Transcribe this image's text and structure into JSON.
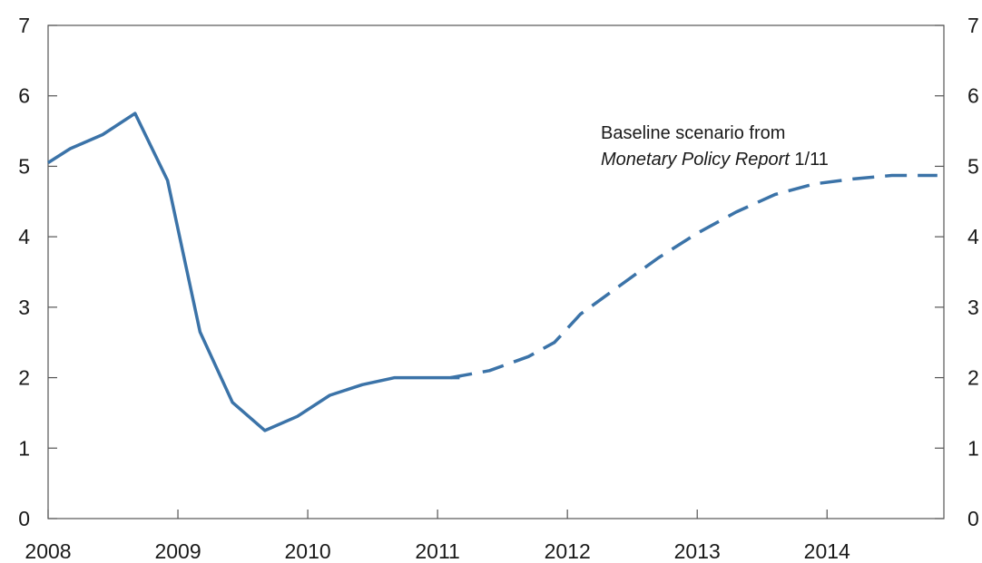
{
  "chart_data": {
    "type": "line",
    "title": "",
    "xlabel": "",
    "ylabel": "",
    "xlim": [
      2008,
      2014.9
    ],
    "ylim": [
      0,
      7
    ],
    "grid": false,
    "legend": "none",
    "x_ticks": [
      "2008",
      "2009",
      "2010",
      "2011",
      "2012",
      "2013",
      "2014"
    ],
    "y_ticks_left": [
      "0",
      "1",
      "2",
      "3",
      "4",
      "5",
      "6",
      "7"
    ],
    "y_ticks_right": [
      "0",
      "1",
      "2",
      "3",
      "4",
      "5",
      "6",
      "7"
    ],
    "series": [
      {
        "style": "solid",
        "color": "#3B73A8",
        "x": [
          2008.0,
          2008.17,
          2008.42,
          2008.67,
          2008.92,
          2009.17,
          2009.42,
          2009.67,
          2009.92,
          2010.17,
          2010.42,
          2010.67,
          2010.92,
          2011.17
        ],
        "y": [
          5.05,
          5.25,
          5.45,
          5.75,
          4.8,
          2.65,
          1.65,
          1.25,
          1.45,
          1.75,
          1.9,
          2.0,
          2.0,
          2.0
        ]
      },
      {
        "style": "dashed",
        "color": "#3B73A8",
        "x": [
          2011.1,
          2011.4,
          2011.7,
          2011.9,
          2012.1,
          2012.4,
          2012.7,
          2013.0,
          2013.3,
          2013.6,
          2013.9,
          2014.2,
          2014.5,
          2014.85
        ],
        "y": [
          2.0,
          2.1,
          2.3,
          2.5,
          2.9,
          3.3,
          3.7,
          4.05,
          4.35,
          4.6,
          4.75,
          4.82,
          4.87,
          4.87
        ]
      }
    ],
    "annotations": [
      {
        "line1": "Baseline scenario from",
        "line2_italic": "Monetary Policy Report",
        "line2_plain": " 1/11"
      }
    ]
  }
}
